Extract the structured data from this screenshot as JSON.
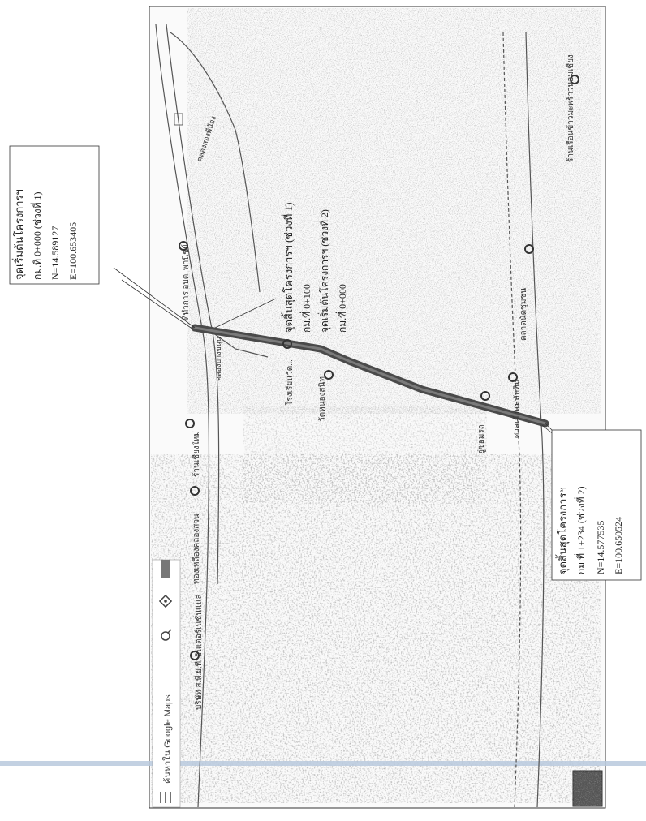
{
  "search_bar": {
    "menu_icon": "hamburger-menu-icon",
    "search_text": "ค้นหาใน Google Maps",
    "search_icon": "search-icon",
    "directions_icon": "directions-icon"
  },
  "callouts": {
    "start": {
      "lines": [
        "จุดเริ่มต้นโครงการฯ",
        "กม.ที่ 0+000 (ช่วงที่ 1)",
        "N=14.589127",
        "E=100.653405"
      ]
    },
    "end": {
      "lines": [
        "จุดสิ้นสุดโครงการฯ",
        "กม.ที่ 1+234 (ช่วงที่ 2)",
        "N=14.577535",
        "E=100.650524"
      ]
    },
    "middle": {
      "lines": [
        "จุดสิ้นสุดโครงการฯ (ช่วงที่ 1)",
        "กม.ที่ 0+100",
        "จุดเริ่มต้นโครงการฯ (ช่วงที่ 2)",
        "กม.ที่ 0+000"
      ]
    }
  },
  "places": [
    {
      "name": "ที่ทำการ อบต. พานิชย์",
      "icon": "map-pin-icon"
    },
    {
      "name": "โรงเรียนวัด...",
      "icon": "map-pin-icon"
    },
    {
      "name": "วัดหนองสนิท",
      "icon": "map-pin-icon"
    },
    {
      "name": "ร้านเชียงใหม่",
      "icon": "map-pin-icon"
    },
    {
      "name": "ทองเหลืองคลองสวน",
      "icon": "map-pin-icon"
    },
    {
      "name": "บริษัท ส.ที.ย.ที. อินเตอร์เนชั่นแนล",
      "icon": "map-pin-icon"
    },
    {
      "name": "ศาลเจ้าแม่ทับทิม",
      "icon": "map-pin-icon"
    },
    {
      "name": "อู่ซ่อมรถ",
      "icon": "map-pin-icon"
    },
    {
      "name": "ตลาดนัดชุมชน",
      "icon": "map-pin-icon"
    },
    {
      "name": "ร้านเรือนข้าวมะพร้าวหอมเชียง",
      "icon": "map-pin-icon"
    }
  ],
  "roads": [
    {
      "name": "คลองบางขนุน"
    },
    {
      "name": "คลองสองพี่น้อง"
    }
  ],
  "colors": {
    "route": "#505050",
    "speckle": "#8a8a8a",
    "frame": "#333333",
    "band": "#b9c9dd"
  }
}
